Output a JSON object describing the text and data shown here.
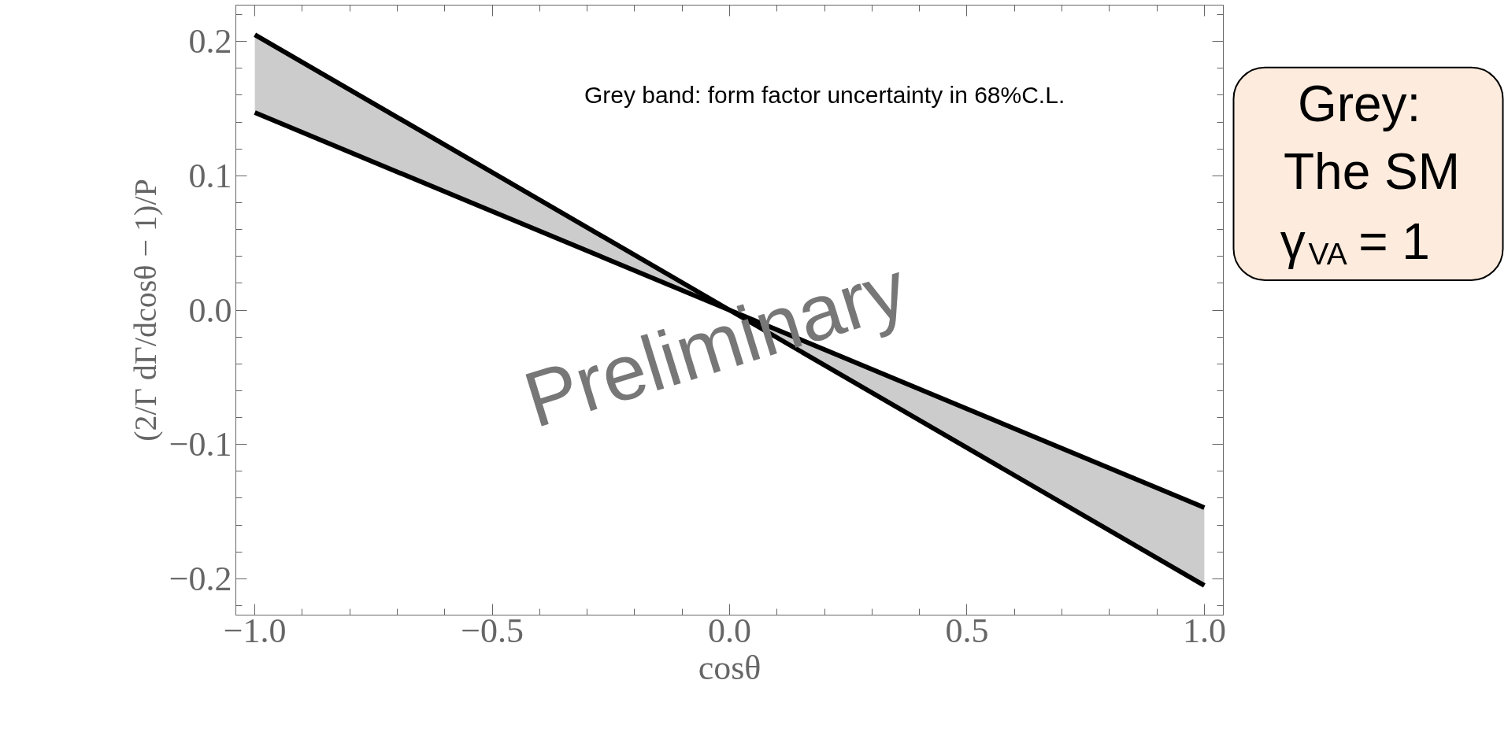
{
  "chart_data": {
    "type": "line",
    "xlabel": "cosθ",
    "ylabel": "(2/Γ dΓ/dcosθ − 1)/P",
    "x": [
      -1,
      0,
      1
    ],
    "series": [
      {
        "color": "#000000",
        "values": [
          0.205,
          0,
          -0.205
        ],
        "lower": [
          0.147,
          0,
          -0.205
        ],
        "upper": [
          0.205,
          0,
          -0.147
        ]
      },
      {
        "color": "#000000",
        "values": [
          0.147,
          0,
          -0.147
        ]
      }
    ],
    "xlim": [
      -1.04,
      1.04
    ],
    "ylim": [
      -0.227,
      0.227
    ],
    "xticks": [
      {
        "value": -1,
        "label": "−1.0"
      },
      {
        "value": -0.5,
        "label": "−0.5"
      },
      {
        "value": 0,
        "label": "0.0"
      },
      0.5,
      {
        "value": 1,
        "label": "1.0"
      }
    ],
    "yticks": [
      {
        "value": -0.2,
        "label": "−0.2"
      },
      {
        "value": -0.1,
        "label": "−0.1"
      },
      {
        "value": 0,
        "label": "0.0"
      },
      0.1,
      0.2
    ],
    "grid": false,
    "marker": "none",
    "line_style": "solid",
    "annotations": [
      "Grey band: form factor uncertainty in 68%C.L.",
      "Preliminary",
      "Grey:",
      "The SM",
      "γ$_{VA}$ = 1"
    ]
  }
}
